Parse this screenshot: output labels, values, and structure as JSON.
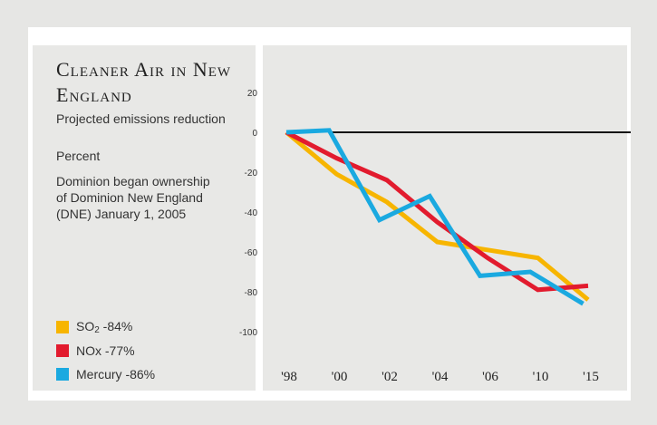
{
  "chart_data": {
    "type": "line",
    "title": "Cleaner Air in New England",
    "subtitle": "Projected emissions reduction",
    "ylabel": "Percent",
    "annotation": "Dominion began ownership of Dominion New England (DNE) January 1, 2005",
    "categories": [
      "'98",
      "'00",
      "'02",
      "'04",
      "'06",
      "'10",
      "'15"
    ],
    "x": [
      0,
      1,
      2,
      3,
      4,
      5,
      6
    ],
    "ylim": [
      -100,
      20
    ],
    "yticks": [
      20,
      0,
      -20,
      -40,
      -60,
      -80,
      -100
    ],
    "grid": false,
    "legend_position": "bottom-left",
    "series": [
      {
        "name": "SO2",
        "legend_main": "SO",
        "legend_sub": "2",
        "legend_value": " -84%",
        "color": "#f7b500",
        "points": [
          [
            0,
            0
          ],
          [
            1,
            -21
          ],
          [
            2,
            -35
          ],
          [
            3,
            -55
          ],
          [
            4,
            -59
          ],
          [
            5,
            -63
          ],
          [
            6,
            -84
          ]
        ]
      },
      {
        "name": "NOx",
        "legend_main": "NOx",
        "legend_sub": "",
        "legend_value": " -77%",
        "color": "#e21b2e",
        "points": [
          [
            0,
            0
          ],
          [
            1,
            -13
          ],
          [
            2,
            -24
          ],
          [
            3,
            -45
          ],
          [
            4,
            -63
          ],
          [
            5,
            -79
          ],
          [
            6,
            -77
          ]
        ]
      },
      {
        "name": "Mercury",
        "legend_main": "Mercury",
        "legend_sub": "",
        "legend_value": " -86%",
        "color": "#1aa9e0",
        "points": [
          [
            0,
            0
          ],
          [
            0.85,
            1
          ],
          [
            1.85,
            -44
          ],
          [
            2.85,
            -32
          ],
          [
            3.85,
            -72
          ],
          [
            4.85,
            -70
          ],
          [
            5.9,
            -86
          ]
        ]
      }
    ],
    "reference_line": {
      "y": 0,
      "from_x": 0.9,
      "color": "#111111"
    }
  }
}
